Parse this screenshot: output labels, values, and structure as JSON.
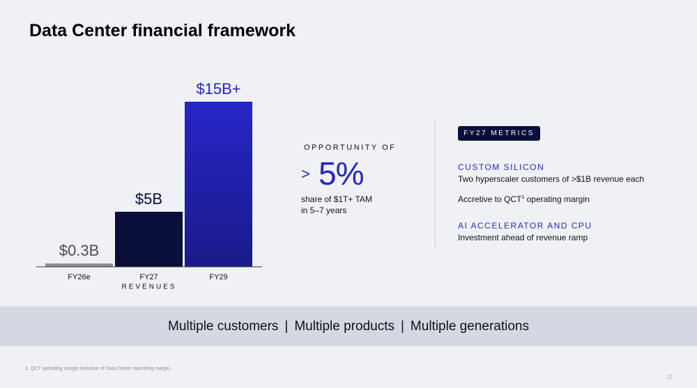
{
  "title": "Data Center financial framework",
  "chart_data": {
    "type": "bar",
    "categories": [
      "FY26e",
      "FY27",
      "FY29"
    ],
    "values": [
      0.3,
      5,
      15
    ],
    "value_labels": [
      "$0.3B",
      "$5B",
      "$15B+"
    ],
    "colors": [
      "#8a8d99",
      "#0a0f3a",
      "#2626c8"
    ],
    "x_label": "REVENUES"
  },
  "opportunity": {
    "heading": "OPPORTUNITY OF",
    "prefix": ">",
    "value": "5%",
    "lines": [
      "share of $1T+ TAM",
      "in 5–7 years"
    ]
  },
  "metrics": {
    "badge": "FY27 METRICS",
    "sections": [
      {
        "heading": "CUSTOM SILICON",
        "items": [
          "Two hyperscaler customers of >$1B revenue each"
        ]
      },
      {
        "heading": "AI ACCELERATOR AND CPU",
        "items": [
          "Investment ahead of revenue ramp"
        ]
      }
    ],
    "note": [
      "Accretive to QCT",
      "1",
      " operating margin"
    ]
  },
  "banner": [
    "Multiple customers",
    "|",
    "Multiple products",
    "|",
    "Multiple generations"
  ],
  "footnote": "1. QCT operating margin inclusive of Data Center operating margin.",
  "page_number": "15"
}
